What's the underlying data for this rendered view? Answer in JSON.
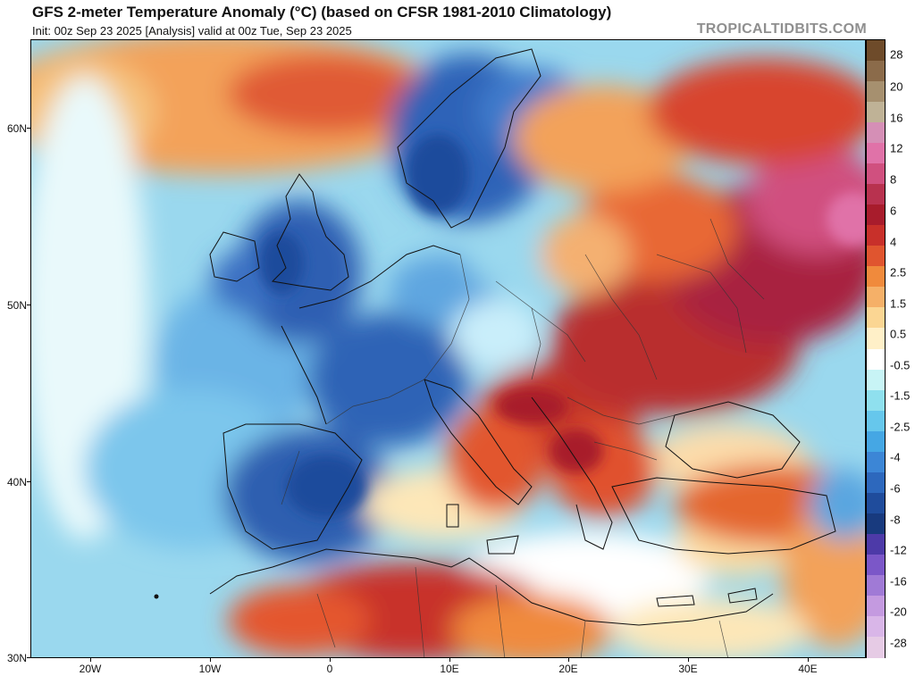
{
  "header": {
    "title": "GFS 2-meter Temperature Anomaly (°C) (based on CFSR 1981-2010 Climatology)",
    "subtitle": "Init: 00z Sep 23 2025   [Analysis]   valid at 00z Tue, Sep 23 2025",
    "brand": "TROPICALTIDBITS.COM"
  },
  "map": {
    "region": "Europe, North Africa and Middle East",
    "lon_range": [
      -25,
      45
    ],
    "lat_range": [
      30,
      65
    ],
    "lat_labels": [
      "60N",
      "50N",
      "40N",
      "30N"
    ],
    "lon_labels": [
      "20W",
      "10W",
      "0",
      "10E",
      "20E",
      "30E",
      "40E"
    ],
    "anomaly_regions": [
      {
        "name": "Scandinavia",
        "anomaly": "-4"
      },
      {
        "name": "British Isles",
        "anomaly": "-4"
      },
      {
        "name": "France",
        "anomaly": "-4"
      },
      {
        "name": "Iberian Peninsula",
        "anomaly": "-4"
      },
      {
        "name": "Balkans",
        "anomaly": "6"
      },
      {
        "name": "Western Russia",
        "anomaly": "8"
      },
      {
        "name": "Eastern Europe",
        "anomaly": "6"
      },
      {
        "name": "Algeria",
        "anomaly": "6"
      },
      {
        "name": "Turkey",
        "anomaly": "4"
      },
      {
        "name": "Mediterranean Sea",
        "anomaly": "0.5"
      }
    ]
  },
  "colorbar": {
    "labels": [
      "28",
      "20",
      "16",
      "12",
      "8",
      "6",
      "4",
      "2.5",
      "1.5",
      "0.5",
      "-0.5",
      "-1.5",
      "-2.5",
      "-4",
      "-6",
      "-8",
      "-12",
      "-16",
      "-20",
      "-28"
    ],
    "colors": [
      "#6e4b2a",
      "#8b6b4a",
      "#a6906f",
      "#bfb296",
      "#d58fb6",
      "#e072a8",
      "#d0507f",
      "#b8324f",
      "#a81c2c",
      "#c8302a",
      "#e0552f",
      "#f08a3c",
      "#f5b068",
      "#fbd693",
      "#fff0c8",
      "#ffffff",
      "#c8f4f6",
      "#8fe0ee",
      "#66c7ec",
      "#45a7e4",
      "#3c86d6",
      "#2d68bd",
      "#1f4c9c",
      "#183a7e",
      "#4d3aa8",
      "#7b57c8",
      "#a07ad6",
      "#c49ae0",
      "#d9b6e8",
      "#e6cbe5"
    ]
  }
}
